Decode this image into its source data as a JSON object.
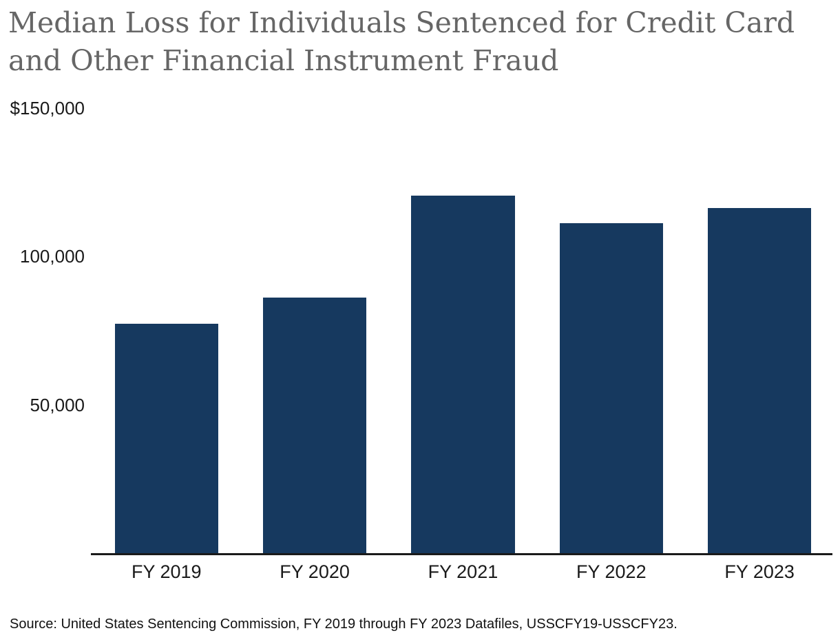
{
  "chart_data": {
    "type": "bar",
    "title": "Median Loss for Individuals Sentenced for Credit Card and Other Financial Instrument Fraud",
    "title_lines": [
      "Median Loss for Individuals Sentenced for Credit Card",
      "and Other Financial Instrument Fraud"
    ],
    "categories": [
      "FY 2019",
      "FY 2020",
      "FY 2021",
      "FY 2022",
      "FY 2023"
    ],
    "values": [
      77200,
      86100,
      120500,
      111100,
      116300
    ],
    "y_ticks": [
      {
        "label": "$150,000",
        "value": 150000
      },
      {
        "label": "100,000",
        "value": 100000
      },
      {
        "label": "50,000",
        "value": 50000
      }
    ],
    "ylim": [
      0,
      150000
    ],
    "grid": false,
    "legend": false,
    "bar_color": "#16395F",
    "axis_color": "#1a1a1a",
    "title_color": "#666666",
    "source": "Source: United States Sentencing Commission, FY 2019 through FY 2023 Datafiles, USSCFY19-USSCFY23."
  }
}
